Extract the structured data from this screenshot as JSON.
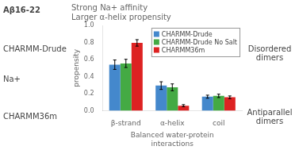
{
  "chart_data": {
    "type": "bar",
    "title": "Strong Na+ affinity\nLarger α-helix propensity",
    "xlabel": "Balanced water-protein\ninteractions",
    "ylabel": "propensity",
    "categories": [
      "β-strand",
      "α-helix",
      "coil"
    ],
    "series": [
      {
        "name": "CHARMM-Drude",
        "color": "#4488cc",
        "values": [
          0.54,
          0.295,
          0.165
        ],
        "errors": [
          0.055,
          0.045,
          0.018
        ]
      },
      {
        "name": "CHARMM-Drude No Salt",
        "color": "#44aa44",
        "values": [
          0.555,
          0.275,
          0.175
        ],
        "errors": [
          0.048,
          0.04,
          0.02
        ]
      },
      {
        "name": "CHARMM36m",
        "color": "#dd2222",
        "values": [
          0.795,
          0.06,
          0.158
        ],
        "errors": [
          0.038,
          0.012,
          0.016
        ]
      }
    ],
    "ylim": [
      0.0,
      1.0
    ],
    "yticks": [
      {
        "value": 0.0,
        "label": "0.0"
      },
      0.2,
      0.4,
      0.6,
      0.8,
      {
        "value": 1.0,
        "label": "1.0"
      }
    ],
    "grid": false,
    "legend": "upper right",
    "annotations": [
      "Aβ16-22",
      "CHARMM-Drude",
      "Na+",
      "CHARMM36m",
      "Disordered\ndimers",
      "Antiparallel\ndimers"
    ]
  }
}
